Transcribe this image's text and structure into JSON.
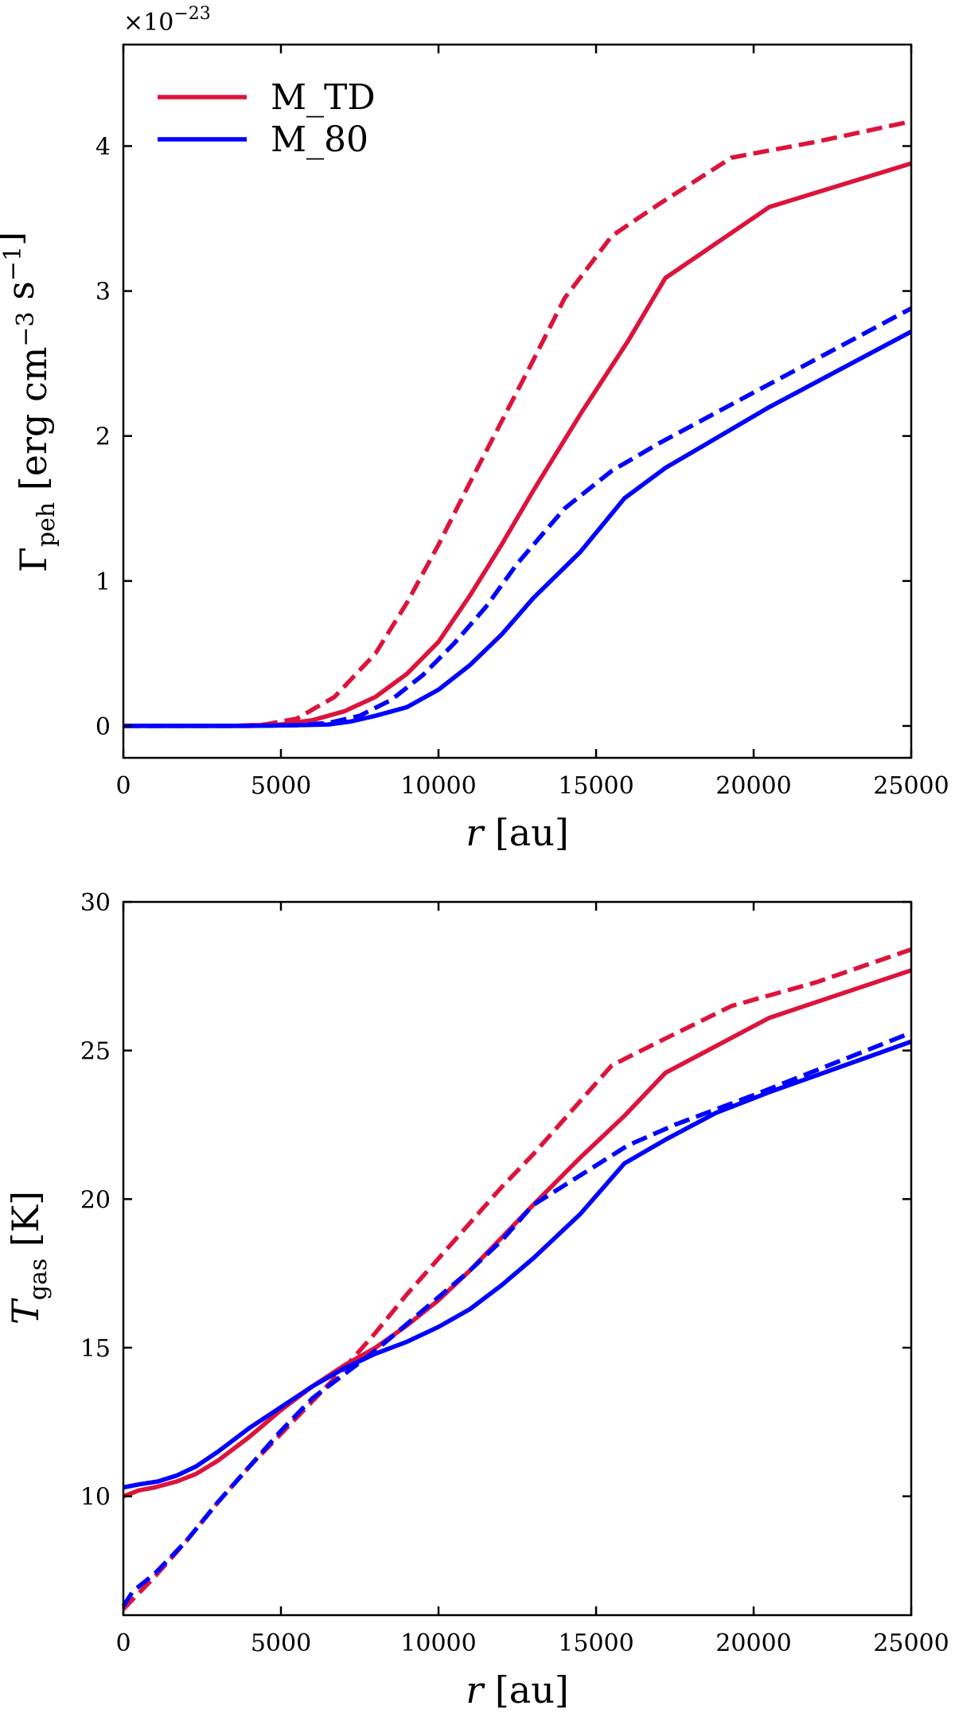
{
  "colors": {
    "m_td": "#DC143C",
    "m_80": "#0000FF"
  },
  "legend": {
    "m_td": "M_TD",
    "m_80": "M_80"
  },
  "chart_data": [
    {
      "type": "line",
      "id": "top",
      "xlabel_var": "r",
      "xlabel_unit": "[au]",
      "ylabel_sym": "Γ",
      "ylabel_sub": "peh",
      "ylabel_units": [
        {
          "t": "[erg cm"
        },
        {
          "t": "−3",
          "sup": true
        },
        {
          "t": " s"
        },
        {
          "t": "−1",
          "sup": true
        },
        {
          "t": "]"
        }
      ],
      "scale_base": "×10",
      "scale_exp": "−23",
      "xlim": [
        0,
        25000
      ],
      "ylim": [
        -0.22,
        4.7
      ],
      "xticks": [
        0,
        5000,
        10000,
        15000,
        20000,
        25000
      ],
      "yticks": [
        0,
        1,
        2,
        3,
        4
      ],
      "series": [
        {
          "name": "M_TD",
          "color_key": "m_td",
          "style": "solid",
          "x": [
            0,
            3500,
            5000,
            6000,
            7000,
            8000,
            9000,
            10000,
            11000,
            12000,
            13000,
            14500,
            16000,
            17200,
            20500,
            25000
          ],
          "y": [
            0,
            0,
            0.01,
            0.04,
            0.1,
            0.2,
            0.36,
            0.58,
            0.9,
            1.25,
            1.62,
            2.15,
            2.65,
            3.09,
            3.58,
            3.88
          ]
        },
        {
          "name": "M_TD",
          "color_key": "m_td",
          "style": "dashed",
          "x": [
            0,
            3500,
            4500,
            5500,
            6700,
            8000,
            9000,
            10000,
            11000,
            12000,
            13000,
            14000,
            15500,
            17000,
            19300,
            22000,
            25000
          ],
          "y": [
            0,
            0,
            0.01,
            0.05,
            0.2,
            0.5,
            0.85,
            1.25,
            1.68,
            2.1,
            2.52,
            2.95,
            3.38,
            3.6,
            3.92,
            4.03,
            4.17
          ]
        },
        {
          "name": "M_80",
          "color_key": "m_80",
          "style": "solid",
          "x": [
            0,
            4000,
            5500,
            6500,
            7200,
            8000,
            9000,
            10000,
            11000,
            12000,
            13000,
            14500,
            15900,
            17200,
            20500,
            25000
          ],
          "y": [
            0,
            0,
            0.005,
            0.01,
            0.03,
            0.07,
            0.13,
            0.25,
            0.42,
            0.63,
            0.88,
            1.2,
            1.57,
            1.78,
            2.2,
            2.72
          ]
        },
        {
          "name": "M_80",
          "color_key": "m_80",
          "style": "dashed",
          "x": [
            0,
            4000,
            5500,
            6500,
            7500,
            8500,
            9500,
            10500,
            11500,
            12500,
            14000,
            15500,
            17000,
            20000,
            25000
          ],
          "y": [
            0,
            0,
            0.005,
            0.02,
            0.07,
            0.18,
            0.35,
            0.57,
            0.82,
            1.12,
            1.5,
            1.76,
            1.95,
            2.3,
            2.88
          ]
        }
      ]
    },
    {
      "type": "line",
      "id": "bottom",
      "xlabel_var": "r",
      "xlabel_unit": "[au]",
      "ylabel_sym": "T",
      "ylabel_sub": "gas",
      "ylabel_units": [
        {
          "t": "[K]"
        }
      ],
      "xlim": [
        0,
        25000
      ],
      "ylim": [
        6,
        30
      ],
      "xticks": [
        0,
        5000,
        10000,
        15000,
        20000,
        25000
      ],
      "yticks": [
        10,
        15,
        20,
        25,
        30
      ],
      "series": [
        {
          "name": "M_TD",
          "color_key": "m_td",
          "style": "solid",
          "x": [
            0,
            500,
            1000,
            1700,
            2300,
            3000,
            4000,
            5000,
            6000,
            7000,
            8000,
            9000,
            10000,
            11000,
            12000,
            13000,
            14500,
            15900,
            17200,
            20500,
            25000
          ],
          "y": [
            10.0,
            10.2,
            10.3,
            10.5,
            10.75,
            11.2,
            12.0,
            12.9,
            13.7,
            14.4,
            15.0,
            15.75,
            16.6,
            17.6,
            18.7,
            19.8,
            21.4,
            22.8,
            24.25,
            26.1,
            27.7
          ]
        },
        {
          "name": "M_TD",
          "color_key": "m_td",
          "style": "dashed",
          "x": [
            0,
            1000,
            2000,
            3000,
            4000,
            5000,
            6000,
            7000,
            8000,
            9000,
            10000,
            11000,
            12000,
            13000,
            14000,
            15500,
            17000,
            19300,
            22000,
            25000
          ],
          "y": [
            6.2,
            7.3,
            8.5,
            9.8,
            11.0,
            12.1,
            13.2,
            14.3,
            15.5,
            16.8,
            18.0,
            19.2,
            20.4,
            21.5,
            22.7,
            24.5,
            25.3,
            26.5,
            27.3,
            28.4
          ]
        },
        {
          "name": "M_80",
          "color_key": "m_80",
          "style": "solid",
          "x": [
            0,
            500,
            1100,
            1700,
            2300,
            3000,
            4000,
            5000,
            6000,
            7000,
            8000,
            9000,
            10000,
            11000,
            12000,
            13000,
            14500,
            15900,
            17200,
            18800,
            20500,
            25000
          ],
          "y": [
            10.3,
            10.4,
            10.5,
            10.7,
            11.0,
            11.5,
            12.3,
            13.0,
            13.7,
            14.3,
            14.8,
            15.2,
            15.7,
            16.3,
            17.1,
            18.0,
            19.5,
            21.2,
            22.0,
            22.9,
            23.6,
            25.3
          ]
        },
        {
          "name": "M_80",
          "color_key": "m_80",
          "style": "dashed",
          "x": [
            0,
            300,
            1000,
            2000,
            3000,
            4000,
            5000,
            6000,
            7000,
            8000,
            9000,
            10000,
            11000,
            12000,
            13000,
            14500,
            16000,
            17500,
            20000,
            25000
          ],
          "y": [
            6.3,
            6.8,
            7.4,
            8.5,
            9.8,
            11.0,
            12.2,
            13.3,
            14.1,
            14.9,
            15.8,
            16.7,
            17.6,
            18.6,
            19.8,
            20.8,
            21.8,
            22.5,
            23.5,
            25.6
          ]
        }
      ]
    }
  ]
}
